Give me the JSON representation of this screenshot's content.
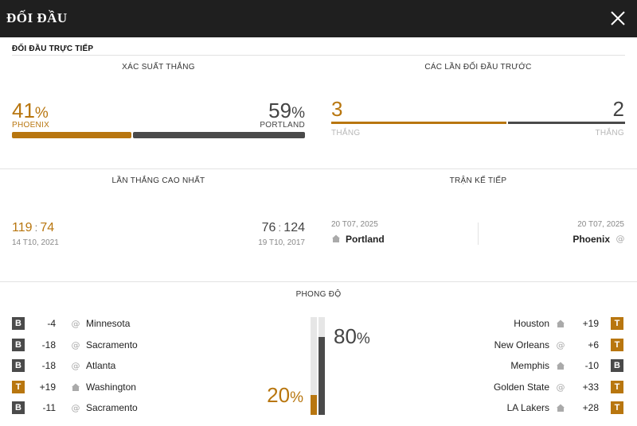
{
  "header": {
    "title": "ĐỐI ĐẦU"
  },
  "section_title": "ĐỐI ĐẦU TRỰC TIẾP",
  "win_probability": {
    "heading": "XÁC SUẤT THẮNG",
    "home": {
      "value": "41",
      "unit": "%",
      "team": "PHOENIX",
      "share": 0.41
    },
    "away": {
      "value": "59",
      "unit": "%",
      "team": "PORTLAND",
      "share": 0.59
    }
  },
  "previous_meetings": {
    "heading": "CÁC LẦN ĐỐI ĐẦU TRƯỚC",
    "home": {
      "wins": "3",
      "label": "THẮNG"
    },
    "away": {
      "wins": "2",
      "label": "THẮNG"
    },
    "home_share": 0.6
  },
  "biggest_win": {
    "heading": "LẦN THẮNG CAO NHẤT",
    "home": {
      "score_a": "119",
      "sep": ":",
      "score_b": "74",
      "date": "14 T10, 2021"
    },
    "away": {
      "score_a": "76",
      "sep": ":",
      "score_b": "124",
      "date": "19 T10, 2017"
    }
  },
  "next_match": {
    "heading": "TRẬN KẾ TIẾP",
    "home": {
      "date": "20 T07, 2025",
      "team": "Portland",
      "icon": "home-icon"
    },
    "away": {
      "date": "20 T07, 2025",
      "team": "Phoenix",
      "icon": "at-icon"
    }
  },
  "form": {
    "heading": "PHONG ĐỘ",
    "home_pct": {
      "value": "20",
      "unit": "%",
      "share": 0.2
    },
    "away_pct": {
      "value": "80",
      "unit": "%",
      "share": 0.8
    },
    "home_games": [
      {
        "result": "B",
        "diff": "-4",
        "venue": "at",
        "opponent": "Minnesota"
      },
      {
        "result": "B",
        "diff": "-18",
        "venue": "at",
        "opponent": "Sacramento"
      },
      {
        "result": "B",
        "diff": "-18",
        "venue": "at",
        "opponent": "Atlanta"
      },
      {
        "result": "T",
        "diff": "+19",
        "venue": "home",
        "opponent": "Washington"
      },
      {
        "result": "B",
        "diff": "-11",
        "venue": "at",
        "opponent": "Sacramento"
      }
    ],
    "away_games": [
      {
        "result": "T",
        "diff": "+19",
        "venue": "home",
        "opponent": "Houston"
      },
      {
        "result": "T",
        "diff": "+6",
        "venue": "at",
        "opponent": "New Orleans"
      },
      {
        "result": "B",
        "diff": "-10",
        "venue": "home",
        "opponent": "Memphis"
      },
      {
        "result": "T",
        "diff": "+33",
        "venue": "at",
        "opponent": "Golden State"
      },
      {
        "result": "T",
        "diff": "+28",
        "venue": "home",
        "opponent": "LA Lakers"
      }
    ]
  },
  "colors": {
    "accent": "#b8760f",
    "dark": "#4a4a4a",
    "header_bg": "#1f1f1f"
  }
}
